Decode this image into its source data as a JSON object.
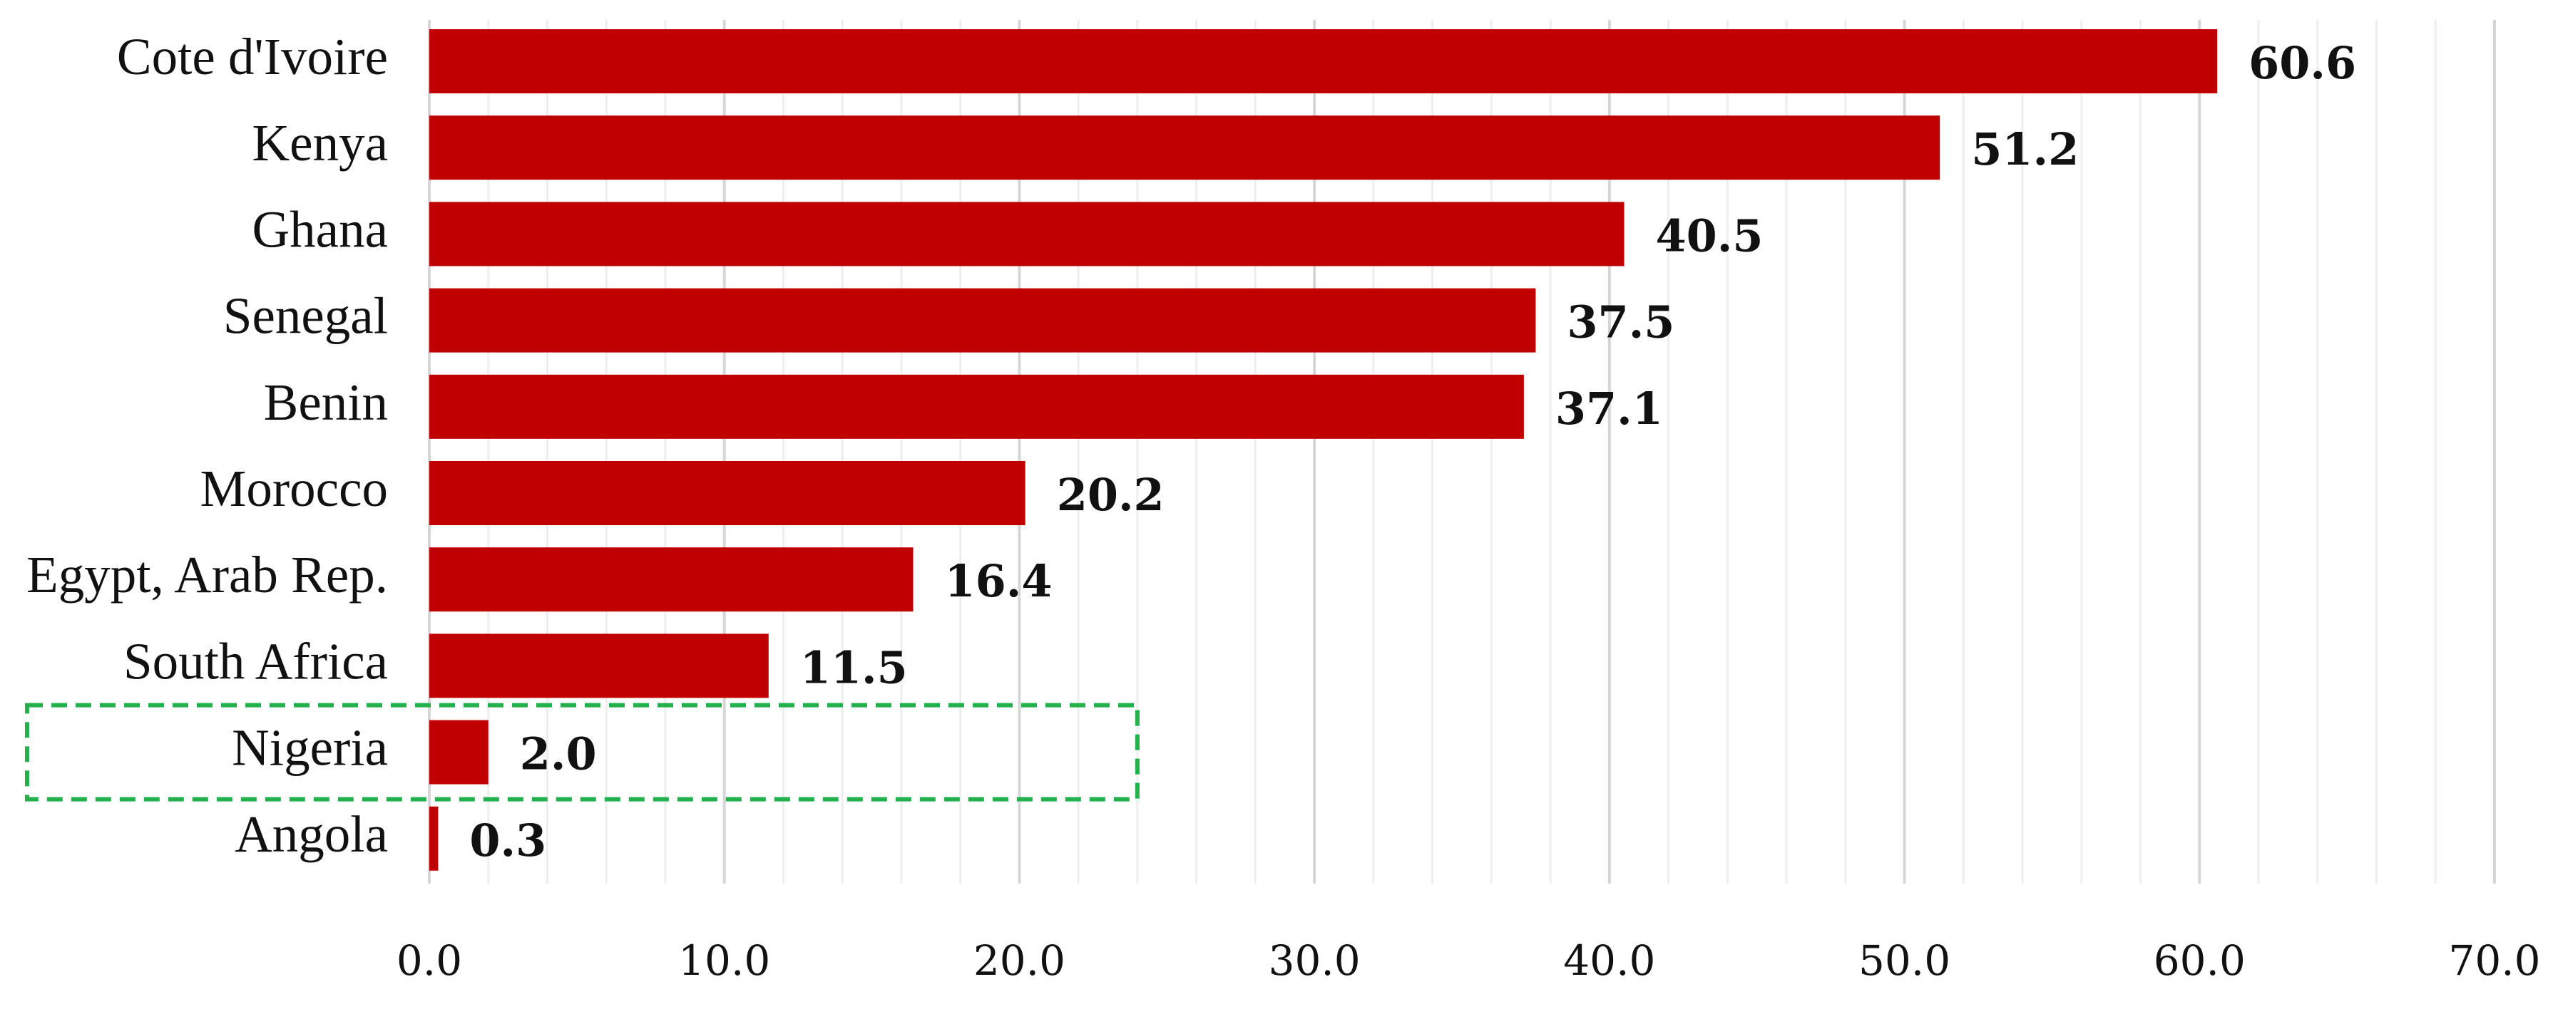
{
  "chart_data": {
    "type": "bar",
    "orientation": "horizontal",
    "categories": [
      "Cote d'Ivoire",
      "Kenya",
      "Ghana",
      "Senegal",
      "Benin",
      "Morocco",
      "Egypt, Arab Rep.",
      "South Africa",
      "Nigeria",
      "Angola"
    ],
    "values": [
      60.6,
      51.2,
      40.5,
      37.5,
      37.1,
      20.2,
      16.4,
      11.5,
      2.0,
      0.3
    ],
    "value_labels": [
      "60.6",
      "51.2",
      "40.5",
      "37.5",
      "37.1",
      "20.2",
      "16.4",
      "11.5",
      "2.0",
      "0.3"
    ],
    "title": "",
    "xlabel": "",
    "ylabel": "",
    "xlim": [
      0,
      70
    ],
    "x_ticks": [
      "0.0",
      "10.0",
      "20.0",
      "30.0",
      "40.0",
      "50.0",
      "60.0",
      "70.0"
    ],
    "grid": "vertical",
    "legend": "none",
    "highlighted_category": "Nigeria",
    "colors": {
      "bar": "#C00000",
      "highlight_box": "#22B14C",
      "major_grid": "#D6D6D6",
      "minor_grid": "#EEEEEE",
      "text": "#111111"
    }
  }
}
